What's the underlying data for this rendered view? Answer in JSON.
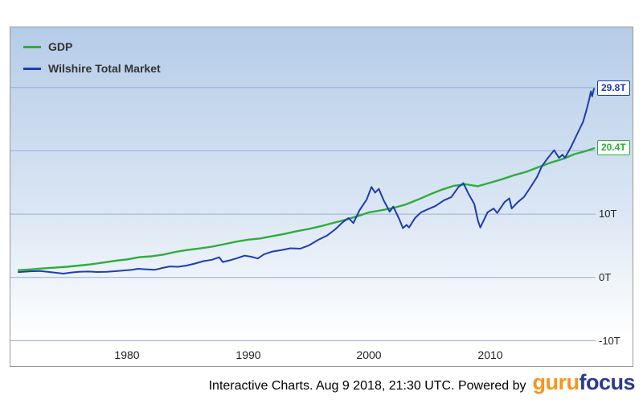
{
  "colors": {
    "gridline": "#96aed2",
    "chart_border": "#999999",
    "plot_bg_top": "#b5cce8",
    "plot_bg_mid": "#dce7f4",
    "plot_bg_bottom": "#ffffff",
    "tick_text": "#222222",
    "logo_orange": "#f7941d",
    "logo_blue": "#2b3990"
  },
  "footer": {
    "caption": "Interactive Charts. Aug 9 2018, 21:30 UTC. Powered by",
    "logo_guru": "guru",
    "logo_focus": "focus"
  },
  "chart_data": {
    "type": "line",
    "title": "",
    "xlabel": "",
    "ylabel": "",
    "legend_position": "top-left",
    "grid": true,
    "x_axis": {
      "range": [
        1971,
        2018.6
      ],
      "ticks": [
        {
          "label": "1980",
          "value": 1980
        },
        {
          "label": "1990",
          "value": 1990
        },
        {
          "label": "2000",
          "value": 2000
        },
        {
          "label": "2010",
          "value": 2010
        }
      ]
    },
    "y_axis": {
      "range": [
        -14,
        39.5
      ],
      "unit": "T",
      "ticks": [
        {
          "label": "10T",
          "value": 10
        },
        {
          "label": "0T",
          "value": 0
        },
        {
          "label": "-10T",
          "value": -10
        }
      ],
      "gridlines": [
        30,
        20,
        10,
        0,
        -10
      ]
    },
    "series": [
      {
        "name": "GDP",
        "color": "#2fad3c",
        "width": 2.4,
        "end_label": "20.4T",
        "end_value": 20.4,
        "points": [
          [
            1971,
            1.16
          ],
          [
            1972,
            1.28
          ],
          [
            1973,
            1.43
          ],
          [
            1974,
            1.55
          ],
          [
            1975,
            1.69
          ],
          [
            1976,
            1.88
          ],
          [
            1977,
            2.09
          ],
          [
            1978,
            2.36
          ],
          [
            1979,
            2.63
          ],
          [
            1980,
            2.86
          ],
          [
            1981,
            3.21
          ],
          [
            1982,
            3.34
          ],
          [
            1983,
            3.63
          ],
          [
            1984,
            4.04
          ],
          [
            1985,
            4.35
          ],
          [
            1986,
            4.59
          ],
          [
            1987,
            4.87
          ],
          [
            1988,
            5.25
          ],
          [
            1989,
            5.66
          ],
          [
            1990,
            5.98
          ],
          [
            1991,
            6.17
          ],
          [
            1992,
            6.54
          ],
          [
            1993,
            6.88
          ],
          [
            1994,
            7.31
          ],
          [
            1995,
            7.66
          ],
          [
            1996,
            8.1
          ],
          [
            1997,
            8.61
          ],
          [
            1998,
            9.09
          ],
          [
            1999,
            9.66
          ],
          [
            2000,
            10.28
          ],
          [
            2001,
            10.62
          ],
          [
            2002,
            10.98
          ],
          [
            2003,
            11.51
          ],
          [
            2004,
            12.27
          ],
          [
            2005,
            13.09
          ],
          [
            2006,
            13.86
          ],
          [
            2007,
            14.48
          ],
          [
            2008,
            14.72
          ],
          [
            2009,
            14.42
          ],
          [
            2010,
            14.96
          ],
          [
            2011,
            15.52
          ],
          [
            2012,
            16.16
          ],
          [
            2013,
            16.69
          ],
          [
            2014,
            17.43
          ],
          [
            2015,
            18.12
          ],
          [
            2016,
            18.71
          ],
          [
            2017,
            19.49
          ],
          [
            2018,
            20.0
          ],
          [
            2018.6,
            20.4
          ]
        ]
      },
      {
        "name": "Wilshire Total Market",
        "color": "#1e3cb0",
        "width": 2,
        "end_label": "29.8T",
        "end_value": 29.8,
        "points": [
          [
            1971,
            0.85
          ],
          [
            1971.5,
            0.92
          ],
          [
            1972,
            0.98
          ],
          [
            1972.8,
            1.03
          ],
          [
            1973.4,
            0.9
          ],
          [
            1974,
            0.78
          ],
          [
            1974.7,
            0.62
          ],
          [
            1975.3,
            0.78
          ],
          [
            1976,
            0.9
          ],
          [
            1976.8,
            0.95
          ],
          [
            1977.5,
            0.87
          ],
          [
            1978.3,
            0.9
          ],
          [
            1979,
            1.0
          ],
          [
            1979.8,
            1.12
          ],
          [
            1980.4,
            1.22
          ],
          [
            1980.9,
            1.38
          ],
          [
            1981.5,
            1.3
          ],
          [
            1982.3,
            1.22
          ],
          [
            1982.9,
            1.5
          ],
          [
            1983.5,
            1.75
          ],
          [
            1984.2,
            1.7
          ],
          [
            1984.9,
            1.88
          ],
          [
            1985.6,
            2.2
          ],
          [
            1986.3,
            2.58
          ],
          [
            1987,
            2.8
          ],
          [
            1987.6,
            3.2
          ],
          [
            1987.9,
            2.45
          ],
          [
            1988.5,
            2.72
          ],
          [
            1989,
            3.0
          ],
          [
            1989.7,
            3.45
          ],
          [
            1990.2,
            3.3
          ],
          [
            1990.8,
            3.0
          ],
          [
            1991.3,
            3.65
          ],
          [
            1992,
            4.1
          ],
          [
            1992.8,
            4.35
          ],
          [
            1993.5,
            4.62
          ],
          [
            1994.3,
            4.55
          ],
          [
            1995,
            5.05
          ],
          [
            1995.8,
            5.95
          ],
          [
            1996.5,
            6.6
          ],
          [
            1997.2,
            7.6
          ],
          [
            1997.8,
            8.7
          ],
          [
            1998.3,
            9.4
          ],
          [
            1998.7,
            8.6
          ],
          [
            1999.2,
            10.6
          ],
          [
            1999.8,
            12.3
          ],
          [
            2000.2,
            14.3
          ],
          [
            2000.5,
            13.4
          ],
          [
            2000.8,
            14.0
          ],
          [
            2001.2,
            12.2
          ],
          [
            2001.7,
            10.4
          ],
          [
            2002,
            11.2
          ],
          [
            2002.5,
            9.2
          ],
          [
            2002.8,
            7.8
          ],
          [
            2003.1,
            8.3
          ],
          [
            2003.3,
            7.9
          ],
          [
            2003.8,
            9.4
          ],
          [
            2004.3,
            10.3
          ],
          [
            2004.9,
            10.8
          ],
          [
            2005.5,
            11.3
          ],
          [
            2006.2,
            12.2
          ],
          [
            2006.8,
            12.7
          ],
          [
            2007.4,
            14.3
          ],
          [
            2007.8,
            14.9
          ],
          [
            2008.2,
            13.3
          ],
          [
            2008.7,
            11.6
          ],
          [
            2009,
            9.0
          ],
          [
            2009.2,
            7.9
          ],
          [
            2009.8,
            10.3
          ],
          [
            2010.3,
            10.9
          ],
          [
            2010.6,
            10.2
          ],
          [
            2011.2,
            11.9
          ],
          [
            2011.6,
            12.5
          ],
          [
            2011.8,
            10.9
          ],
          [
            2012.3,
            11.9
          ],
          [
            2012.8,
            12.7
          ],
          [
            2013.4,
            14.4
          ],
          [
            2013.9,
            15.9
          ],
          [
            2014.3,
            17.6
          ],
          [
            2014.8,
            18.9
          ],
          [
            2015.3,
            20.1
          ],
          [
            2015.7,
            18.9
          ],
          [
            2016,
            19.4
          ],
          [
            2016.2,
            18.9
          ],
          [
            2016.7,
            20.6
          ],
          [
            2017.2,
            22.6
          ],
          [
            2017.7,
            24.6
          ],
          [
            2018,
            26.6
          ],
          [
            2018.2,
            28.1
          ],
          [
            2018.35,
            29.4
          ],
          [
            2018.45,
            28.6
          ],
          [
            2018.6,
            29.8
          ]
        ]
      }
    ]
  }
}
